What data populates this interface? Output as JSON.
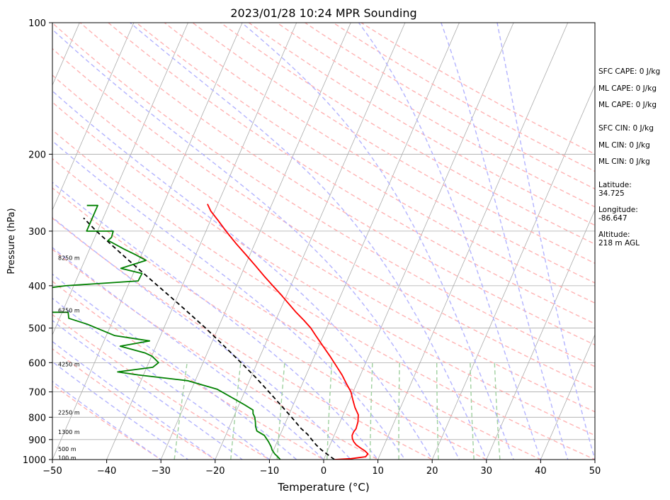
{
  "chart_data": {
    "type": "skew-t log-p sounding",
    "title": "2023/01/28 10:24 MPR Sounding",
    "xlabel": "Temperature (°C)",
    "ylabel": "Pressure (hPa)",
    "xlim": [
      -50,
      50
    ],
    "ylim": [
      1000,
      100
    ],
    "y_scale": "log",
    "x_ticks": [
      "−50",
      "−40",
      "−30",
      "−20",
      "−10",
      "0",
      "10",
      "20",
      "30",
      "40",
      "50"
    ],
    "y_ticks": [
      "100",
      "200",
      "300",
      "400",
      "500",
      "600",
      "700",
      "800",
      "900",
      "1000"
    ],
    "grid": true,
    "temperature_profile": {
      "color": "#ff0000",
      "p": [
        1000,
        995,
        985,
        970,
        955,
        940,
        925,
        910,
        895,
        880,
        865,
        850,
        820,
        790,
        760,
        730,
        700,
        670,
        640,
        610,
        580,
        550,
        520,
        500,
        480,
        460,
        440,
        420,
        400,
        380,
        360,
        340,
        320,
        300,
        285,
        270,
        260
      ],
      "t": [
        2,
        5,
        7.5,
        7.7,
        6.9,
        5.8,
        4.8,
        4.1,
        3.6,
        3.3,
        3.3,
        3.5,
        3.3,
        2.8,
        1.6,
        0.6,
        -0.4,
        -1.9,
        -3.4,
        -5.2,
        -7.1,
        -9.2,
        -11.4,
        -12.9,
        -14.8,
        -16.9,
        -18.9,
        -21.0,
        -23.3,
        -25.7,
        -28.1,
        -30.7,
        -33.5,
        -36.3,
        -38.4,
        -40.7,
        -41.9
      ]
    },
    "dewpoint_profile": {
      "color": "#008000",
      "p": [
        1000,
        985,
        970,
        950,
        935,
        910,
        880,
        860,
        840,
        820,
        800,
        785,
        770,
        750,
        720,
        690,
        660,
        640,
        630,
        615,
        600,
        580,
        570,
        550,
        535,
        520,
        490,
        475,
        460,
        460,
        435,
        420,
        405,
        400,
        390,
        375,
        365,
        350,
        340,
        330,
        315,
        310,
        300,
        300,
        262,
        262
      ],
      "t": [
        -8,
        -8.7,
        -9.5,
        -10.3,
        -10.7,
        -11.6,
        -12.9,
        -14.6,
        -15.2,
        -15.6,
        -16.1,
        -16.7,
        -17.0,
        -18.9,
        -22.0,
        -25.3,
        -31.4,
        -41.0,
        -45.0,
        -38.9,
        -38.2,
        -39.9,
        -41.5,
        -46.6,
        -41.6,
        -48.5,
        -54.4,
        -58.3,
        -58.9,
        -64.4,
        -64.4,
        -64.7,
        -64.6,
        -61.5,
        -48.5,
        -48.4,
        -52.7,
        -48.7,
        -51.0,
        -53.6,
        -57.3,
        -56.9,
        -57.1,
        -62.0,
        -62.0,
        -64.0
      ]
    },
    "parcel_profile": {
      "color": "#000000",
      "style": "dashed",
      "p": [
        1000,
        975,
        950,
        925,
        900,
        875,
        850,
        800,
        750,
        700,
        650,
        600,
        550,
        500,
        450,
        400,
        350,
        300,
        280
      ],
      "t": [
        2.0,
        0.4,
        -1.2,
        -2.6,
        -3.8,
        -5.0,
        -6.6,
        -9.3,
        -12.3,
        -15.5,
        -19.0,
        -23.0,
        -27.4,
        -32.3,
        -38.0,
        -44.5,
        -51.9,
        -60.2,
        -63.6
      ]
    },
    "height_labels": [
      "100 m",
      "500 m",
      "1300 m",
      "2250 m",
      "4250 m",
      "6250 m",
      "8250 m"
    ],
    "height_label_pressures": [
      990,
      945,
      865,
      780,
      605,
      455,
      345
    ],
    "info_panel": [
      "SFC CAPE: 0 J/kg",
      "ML CAPE: 0 J/kg",
      "ML CAPE: 0 J/kg",
      "SFC CIN: 0 J/kg",
      "ML CIN: 0 J/kg",
      "ML CIN: 0 J/kg",
      "Latitude:",
      "34.725",
      "Longitude:",
      "-86.647",
      "Altitude:",
      "218 m AGL"
    ],
    "colors": {
      "isotherm": "#aaaaaa",
      "isobar": "#aaaaaa",
      "dry_adiabat": "#ffb3b3",
      "moist_adiabat": "#b3b3ff",
      "mixing_ratio": "#9fd09f"
    }
  }
}
